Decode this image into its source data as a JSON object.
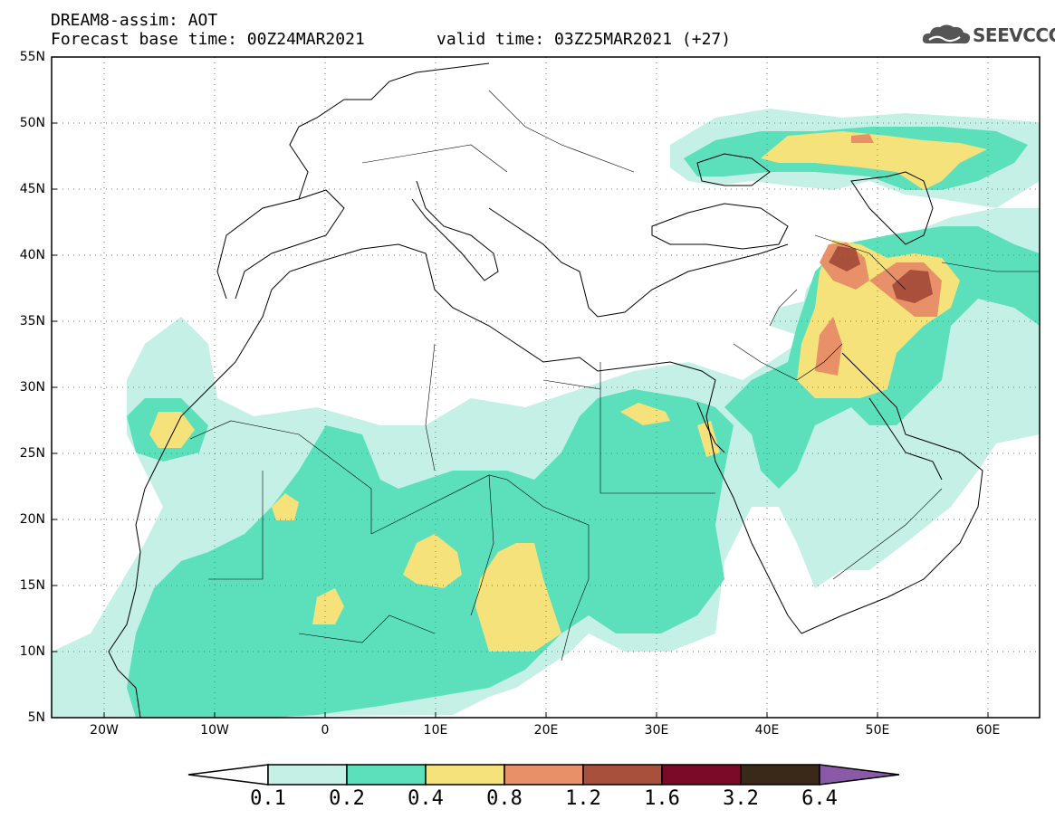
{
  "header": {
    "line1": "DREAM8-assim: AOT",
    "line2": "Forecast base time: 00Z24MAR2021",
    "valid": "valid time: 03Z25MAR2021 (+27)"
  },
  "logo": {
    "text": "SEEVCCC",
    "icon": "cloud-icon"
  },
  "axes": {
    "lat_labels": [
      "55N",
      "50N",
      "45N",
      "40N",
      "35N",
      "30N",
      "25N",
      "20N",
      "15N",
      "10N",
      "5N"
    ],
    "lon_labels": [
      "20W",
      "10W",
      "0",
      "10E",
      "20E",
      "30E",
      "40E",
      "50E",
      "60E"
    ]
  },
  "colorbar": {
    "labels": [
      "0.1",
      "0.2",
      "0.4",
      "0.8",
      "1.2",
      "1.6",
      "3.2",
      "6.4"
    ],
    "colors": [
      "#ffffff",
      "#c4f0e6",
      "#5ce0bc",
      "#f5e27a",
      "#e89068",
      "#a8503c",
      "#7a0a28",
      "#3a2818",
      "#8a5aa8"
    ]
  }
}
